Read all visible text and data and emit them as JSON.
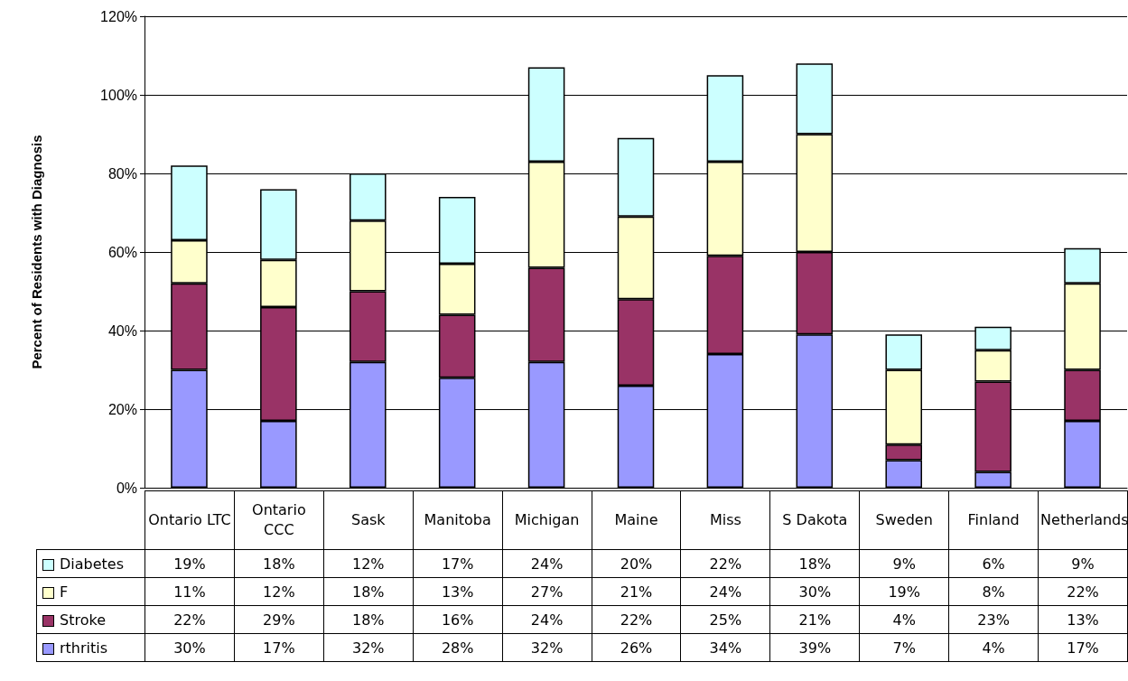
{
  "chart_data": {
    "type": "bar",
    "stacked": true,
    "ylabel": "Percent of Residents with Diagnosis",
    "categories": [
      "Ontario LTC",
      "Ontario CCC",
      "Sask",
      "Manitoba",
      "Michigan",
      "Maine",
      "Miss",
      "S Dakota",
      "Sweden",
      "Finland",
      "Netherlands"
    ],
    "series": [
      {
        "name": "rthritis",
        "color": "#9999ff",
        "values": [
          30,
          17,
          32,
          28,
          32,
          26,
          34,
          39,
          7,
          4,
          17
        ],
        "value_labels": [
          "30%",
          "17%",
          "32%",
          "28%",
          "32%",
          "26%",
          "34%",
          "39%",
          "7%",
          "4%",
          "17%"
        ]
      },
      {
        "name": "Stroke",
        "color": "#993366",
        "values": [
          22,
          29,
          18,
          16,
          24,
          22,
          25,
          21,
          4,
          23,
          13
        ],
        "value_labels": [
          "22%",
          "29%",
          "18%",
          "16%",
          "24%",
          "22%",
          "25%",
          "21%",
          "4%",
          "23%",
          "13%"
        ]
      },
      {
        "name": "F",
        "color": "#ffffcc",
        "values": [
          11,
          12,
          18,
          13,
          27,
          21,
          24,
          30,
          19,
          8,
          22
        ],
        "value_labels": [
          "11%",
          "12%",
          "18%",
          "13%",
          "27%",
          "21%",
          "24%",
          "30%",
          "19%",
          "8%",
          "22%"
        ]
      },
      {
        "name": "Diabetes",
        "color": "#ccffff",
        "values": [
          19,
          18,
          12,
          17,
          24,
          20,
          22,
          18,
          9,
          6,
          9
        ],
        "value_labels": [
          "19%",
          "18%",
          "12%",
          "17%",
          "24%",
          "20%",
          "22%",
          "18%",
          "9%",
          "6%",
          "9%"
        ]
      }
    ],
    "ylim": [
      0,
      120
    ],
    "yticks": [
      {
        "value": 0,
        "label": "0%"
      },
      {
        "value": 20,
        "label": "20%"
      },
      {
        "value": 40,
        "label": "40%"
      },
      {
        "value": 60,
        "label": "60%"
      },
      {
        "value": 80,
        "label": "80%"
      },
      {
        "value": 100,
        "label": "100%"
      },
      {
        "value": 120,
        "label": "120%"
      }
    ],
    "grid": "y",
    "legend": "bottom"
  }
}
